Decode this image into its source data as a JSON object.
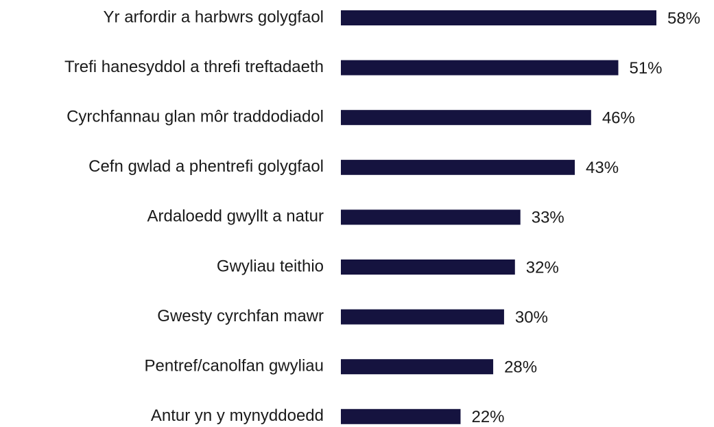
{
  "chart_data": {
    "type": "bar",
    "orientation": "horizontal",
    "categories": [
      "Yr arfordir a harbwrs golygfaol",
      "Trefi hanesyddol a threfi treftadaeth",
      "Cyrchfannau glan môr traddodiadol",
      "Cefn gwlad a phentrefi golygfaol",
      "Ardaloedd gwyllt a natur",
      "Gwyliau teithio",
      "Gwesty cyrchfan mawr",
      "Pentref/canolfan gwyliau",
      "Antur yn y mynyddoedd"
    ],
    "values": [
      58,
      51,
      46,
      43,
      33,
      32,
      30,
      28,
      22
    ],
    "value_labels": [
      "58%",
      "51%",
      "46%",
      "43%",
      "33%",
      "32%",
      "30%",
      "28%",
      "22%"
    ],
    "color": "#15133f"
  }
}
